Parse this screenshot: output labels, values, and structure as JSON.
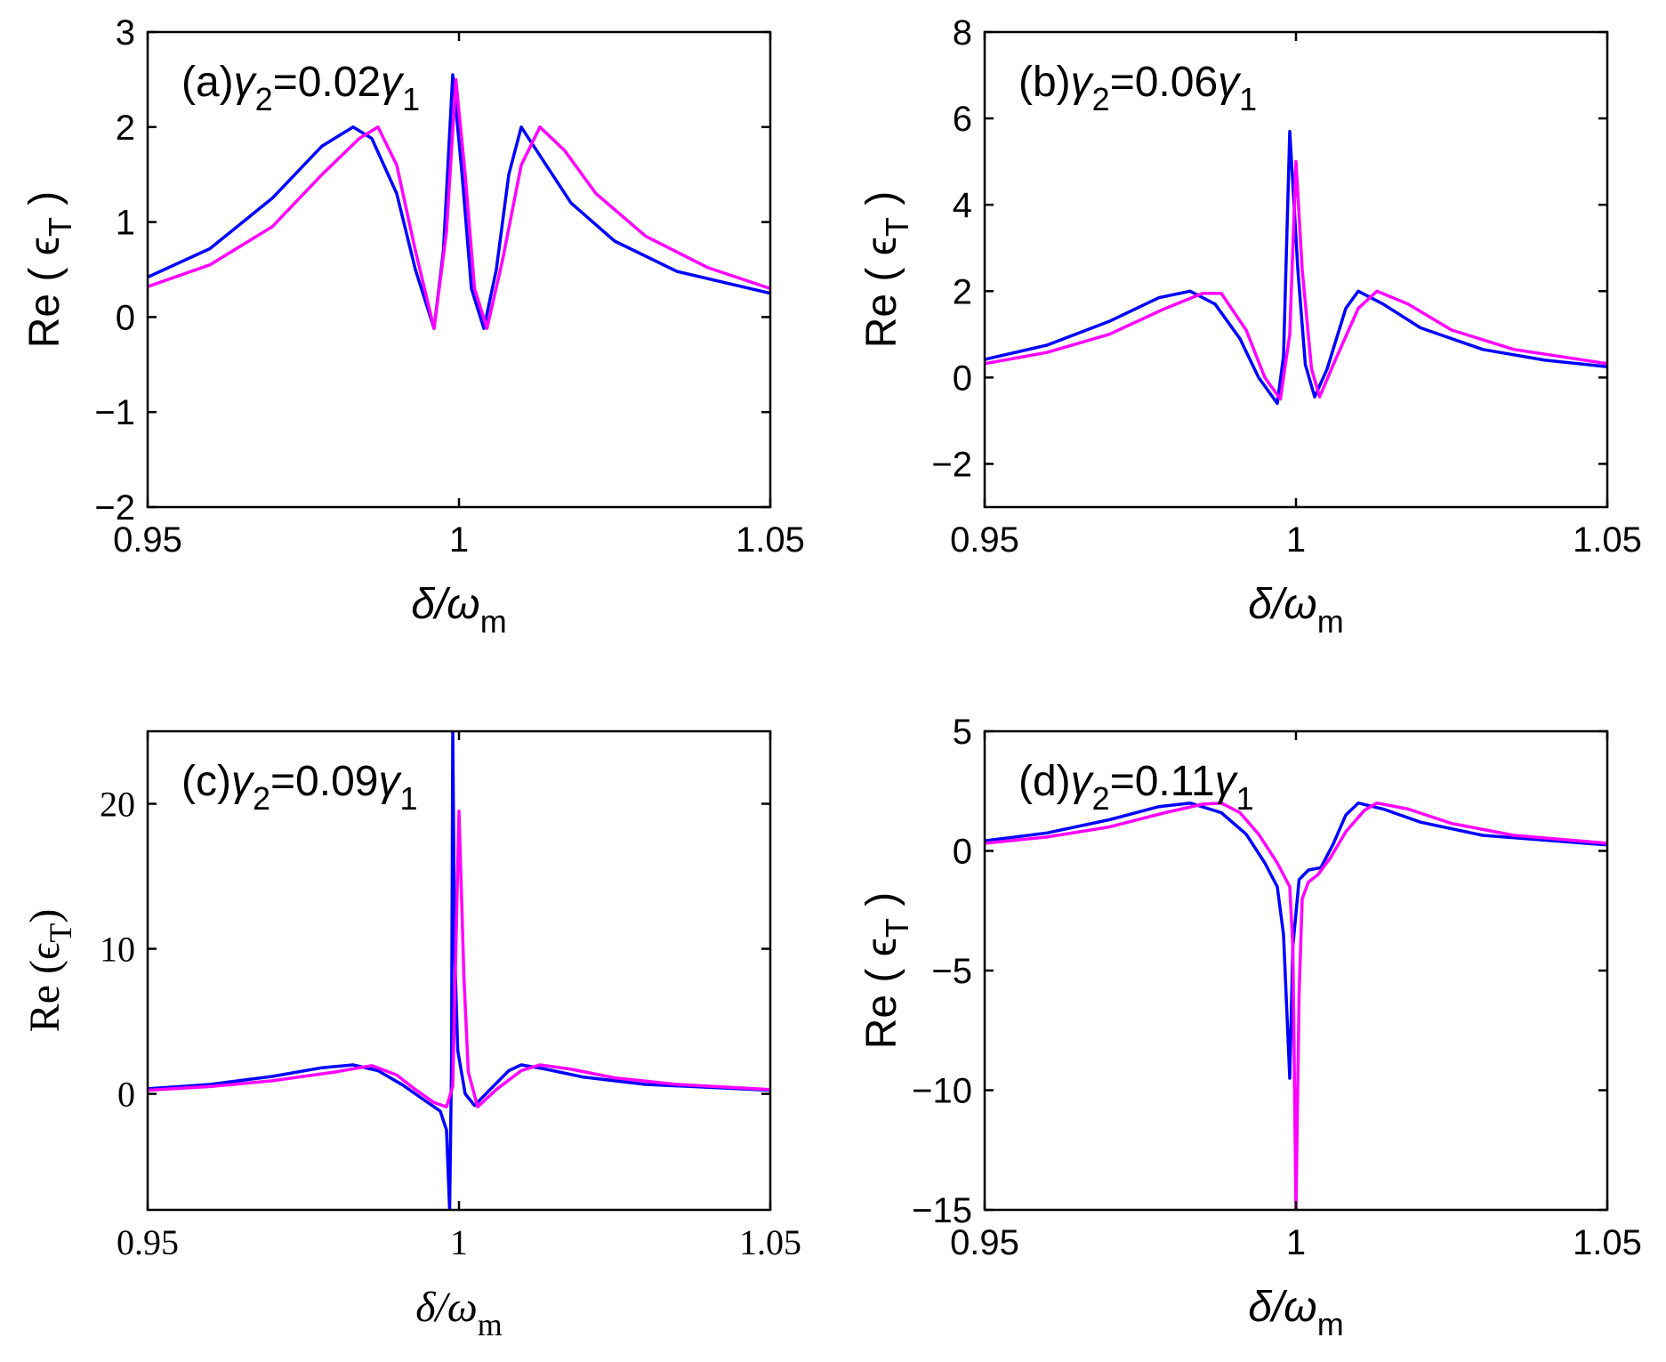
{
  "chart_data": [
    {
      "type": "line",
      "panel": "(a)",
      "label_parts": {
        "prefix": "(a)",
        "var": "γ",
        "sub": "2",
        "mid": "=0.02",
        "var2": "γ",
        "sub2": "1"
      },
      "xlabel": {
        "main": "δ/ω",
        "sub": "m"
      },
      "ylabel": {
        "main": "Re ( ϵ",
        "sub": "T",
        "tail": " )"
      },
      "xlim": [
        0.95,
        1.05
      ],
      "ylim": [
        -2,
        3
      ],
      "xticks": [
        0.95,
        1,
        1.05
      ],
      "xtick_labels": [
        "0.95",
        "1",
        "1.05"
      ],
      "yticks": [
        -2,
        -1,
        0,
        1,
        2,
        3
      ],
      "ytick_labels": [
        "−2",
        "−1",
        "0",
        "1",
        "2",
        "3"
      ],
      "serif": false,
      "series": [
        {
          "name": "blue",
          "color": "#0000ff",
          "points": [
            [
              0.95,
              0.42
            ],
            [
              0.96,
              0.72
            ],
            [
              0.97,
              1.25
            ],
            [
              0.978,
              1.8
            ],
            [
              0.983,
              2.0
            ],
            [
              0.986,
              1.88
            ],
            [
              0.99,
              1.3
            ],
            [
              0.993,
              0.5
            ],
            [
              0.996,
              -0.12
            ],
            [
              0.9975,
              0.7
            ],
            [
              0.999,
              2.55
            ],
            [
              1.0005,
              1.5
            ],
            [
              1.002,
              0.3
            ],
            [
              1.004,
              -0.12
            ],
            [
              1.006,
              0.5
            ],
            [
              1.008,
              1.5
            ],
            [
              1.01,
              2.0
            ],
            [
              1.013,
              1.7
            ],
            [
              1.018,
              1.2
            ],
            [
              1.025,
              0.8
            ],
            [
              1.035,
              0.48
            ],
            [
              1.05,
              0.25
            ]
          ]
        },
        {
          "name": "magenta",
          "color": "#ff00ff",
          "points": [
            [
              0.95,
              0.32
            ],
            [
              0.96,
              0.55
            ],
            [
              0.97,
              0.95
            ],
            [
              0.978,
              1.5
            ],
            [
              0.984,
              1.88
            ],
            [
              0.987,
              2.0
            ],
            [
              0.99,
              1.6
            ],
            [
              0.993,
              0.7
            ],
            [
              0.996,
              -0.12
            ],
            [
              0.998,
              0.9
            ],
            [
              0.9995,
              2.5
            ],
            [
              1.001,
              1.5
            ],
            [
              1.0025,
              0.3
            ],
            [
              1.0045,
              -0.12
            ],
            [
              1.007,
              0.6
            ],
            [
              1.01,
              1.6
            ],
            [
              1.013,
              2.0
            ],
            [
              1.017,
              1.75
            ],
            [
              1.022,
              1.3
            ],
            [
              1.03,
              0.85
            ],
            [
              1.04,
              0.52
            ],
            [
              1.05,
              0.3
            ]
          ]
        }
      ]
    },
    {
      "type": "line",
      "panel": "(b)",
      "label_parts": {
        "prefix": "(b)",
        "var": "γ",
        "sub": "2",
        "mid": "=0.06",
        "var2": "γ",
        "sub2": "1"
      },
      "xlabel": {
        "main": "δ/ω",
        "sub": "m"
      },
      "ylabel": {
        "main": "Re ( ϵ",
        "sub": "T",
        "tail": " )"
      },
      "xlim": [
        0.95,
        1.05
      ],
      "ylim": [
        -3,
        8
      ],
      "xticks": [
        0.95,
        1,
        1.05
      ],
      "xtick_labels": [
        "0.95",
        "1",
        "1.05"
      ],
      "yticks": [
        -2,
        0,
        2,
        4,
        6,
        8
      ],
      "ytick_labels": [
        "−2",
        "0",
        "2",
        "4",
        "6",
        "8"
      ],
      "serif": false,
      "series": [
        {
          "name": "blue",
          "color": "#0000ff",
          "points": [
            [
              0.95,
              0.42
            ],
            [
              0.96,
              0.75
            ],
            [
              0.97,
              1.3
            ],
            [
              0.978,
              1.85
            ],
            [
              0.983,
              2.0
            ],
            [
              0.987,
              1.7
            ],
            [
              0.991,
              0.9
            ],
            [
              0.994,
              0.0
            ],
            [
              0.997,
              -0.6
            ],
            [
              0.998,
              0.5
            ],
            [
              0.999,
              5.7
            ],
            [
              1.0003,
              2.5
            ],
            [
              1.0015,
              0.3
            ],
            [
              1.003,
              -0.45
            ],
            [
              1.005,
              0.2
            ],
            [
              1.008,
              1.6
            ],
            [
              1.01,
              2.0
            ],
            [
              1.014,
              1.7
            ],
            [
              1.02,
              1.15
            ],
            [
              1.03,
              0.65
            ],
            [
              1.04,
              0.4
            ],
            [
              1.05,
              0.25
            ]
          ]
        },
        {
          "name": "magenta",
          "color": "#ff00ff",
          "points": [
            [
              0.95,
              0.32
            ],
            [
              0.96,
              0.58
            ],
            [
              0.97,
              1.0
            ],
            [
              0.979,
              1.6
            ],
            [
              0.985,
              1.95
            ],
            [
              0.988,
              1.95
            ],
            [
              0.992,
              1.1
            ],
            [
              0.995,
              0.0
            ],
            [
              0.9975,
              -0.5
            ],
            [
              0.999,
              1.0
            ],
            [
              1.0,
              5.0
            ],
            [
              1.001,
              2.5
            ],
            [
              1.0025,
              0.2
            ],
            [
              1.0038,
              -0.45
            ],
            [
              1.006,
              0.3
            ],
            [
              1.01,
              1.6
            ],
            [
              1.013,
              2.0
            ],
            [
              1.018,
              1.7
            ],
            [
              1.025,
              1.1
            ],
            [
              1.035,
              0.65
            ],
            [
              1.05,
              0.32
            ]
          ]
        }
      ]
    },
    {
      "type": "line",
      "panel": "(c)",
      "label_parts": {
        "prefix": "(c)",
        "var": "γ",
        "sub": "2",
        "mid": "=0.09",
        "var2": "γ",
        "sub2": "1"
      },
      "xlabel": {
        "main": "δ/ω",
        "sub": "m"
      },
      "ylabel": {
        "main": "Re (ϵ",
        "sub": "T",
        "tail": ")"
      },
      "xlim": [
        0.95,
        1.05
      ],
      "ylim": [
        -8,
        25
      ],
      "xticks": [
        0.95,
        1,
        1.05
      ],
      "xtick_labels": [
        "0.95",
        "1",
        "1.05"
      ],
      "yticks": [
        0,
        10,
        20
      ],
      "ytick_labels": [
        "0",
        "10",
        "20"
      ],
      "serif": true,
      "series": [
        {
          "name": "blue",
          "color": "#0000ff",
          "points": [
            [
              0.95,
              0.35
            ],
            [
              0.96,
              0.65
            ],
            [
              0.97,
              1.2
            ],
            [
              0.978,
              1.8
            ],
            [
              0.983,
              2.0
            ],
            [
              0.987,
              1.6
            ],
            [
              0.991,
              0.6
            ],
            [
              0.994,
              -0.3
            ],
            [
              0.997,
              -1.2
            ],
            [
              0.998,
              -2.5
            ],
            [
              0.9985,
              -8
            ],
            [
              0.9988,
              2
            ],
            [
              0.999,
              25
            ],
            [
              0.9993,
              10
            ],
            [
              0.9998,
              3
            ],
            [
              1.001,
              0
            ],
            [
              1.0025,
              -0.8
            ],
            [
              1.005,
              0.3
            ],
            [
              1.008,
              1.6
            ],
            [
              1.01,
              2.0
            ],
            [
              1.014,
              1.7
            ],
            [
              1.02,
              1.15
            ],
            [
              1.03,
              0.65
            ],
            [
              1.05,
              0.25
            ]
          ]
        },
        {
          "name": "magenta",
          "color": "#ff00ff",
          "points": [
            [
              0.95,
              0.25
            ],
            [
              0.96,
              0.5
            ],
            [
              0.97,
              0.9
            ],
            [
              0.98,
              1.5
            ],
            [
              0.986,
              1.95
            ],
            [
              0.99,
              1.3
            ],
            [
              0.993,
              0.3
            ],
            [
              0.996,
              -0.6
            ],
            [
              0.998,
              -0.9
            ],
            [
              0.999,
              0.5
            ],
            [
              1.0,
              19.5
            ],
            [
              1.0008,
              8
            ],
            [
              1.0015,
              1.5
            ],
            [
              1.003,
              -0.9
            ],
            [
              1.006,
              0.3
            ],
            [
              1.01,
              1.6
            ],
            [
              1.013,
              2.0
            ],
            [
              1.018,
              1.7
            ],
            [
              1.025,
              1.1
            ],
            [
              1.035,
              0.65
            ],
            [
              1.05,
              0.3
            ]
          ]
        }
      ]
    },
    {
      "type": "line",
      "panel": "(d)",
      "label_parts": {
        "prefix": "(d)",
        "var": "γ",
        "sub": "2",
        "mid": "=0.11",
        "var2": "γ",
        "sub2": "1"
      },
      "xlabel": {
        "main": "δ/ω",
        "sub": "m"
      },
      "ylabel": {
        "main": "Re ( ϵ",
        "sub": "T",
        "tail": " )"
      },
      "xlim": [
        0.95,
        1.05
      ],
      "ylim": [
        -15,
        5
      ],
      "xticks": [
        0.95,
        1,
        1.05
      ],
      "xtick_labels": [
        "0.95",
        "1",
        "1.05"
      ],
      "yticks": [
        -15,
        -10,
        -5,
        0,
        5
      ],
      "ytick_labels": [
        "−15",
        "−10",
        "−5",
        "0",
        "5"
      ],
      "serif": false,
      "series": [
        {
          "name": "blue",
          "color": "#0000ff",
          "points": [
            [
              0.95,
              0.42
            ],
            [
              0.96,
              0.75
            ],
            [
              0.97,
              1.3
            ],
            [
              0.978,
              1.85
            ],
            [
              0.983,
              2.0
            ],
            [
              0.988,
              1.6
            ],
            [
              0.992,
              0.7
            ],
            [
              0.995,
              -0.5
            ],
            [
              0.997,
              -1.5
            ],
            [
              0.998,
              -3.5
            ],
            [
              0.999,
              -9.5
            ],
            [
              0.9995,
              -4
            ],
            [
              1.0005,
              -1.2
            ],
            [
              1.002,
              -0.8
            ],
            [
              1.004,
              -0.7
            ],
            [
              1.006,
              0.3
            ],
            [
              1.008,
              1.5
            ],
            [
              1.01,
              2.0
            ],
            [
              1.014,
              1.75
            ],
            [
              1.02,
              1.2
            ],
            [
              1.03,
              0.65
            ],
            [
              1.05,
              0.25
            ]
          ]
        },
        {
          "name": "magenta",
          "color": "#ff00ff",
          "points": [
            [
              0.95,
              0.32
            ],
            [
              0.96,
              0.58
            ],
            [
              0.97,
              1.0
            ],
            [
              0.979,
              1.6
            ],
            [
              0.985,
              1.95
            ],
            [
              0.988,
              2.0
            ],
            [
              0.991,
              1.6
            ],
            [
              0.994,
              0.7
            ],
            [
              0.997,
              -0.5
            ],
            [
              0.999,
              -1.5
            ],
            [
              0.9995,
              -4
            ],
            [
              1.0,
              -15
            ],
            [
              1.0005,
              -6
            ],
            [
              1.001,
              -2
            ],
            [
              1.002,
              -1.3
            ],
            [
              1.0035,
              -1.0
            ],
            [
              1.0055,
              -0.3
            ],
            [
              1.008,
              0.8
            ],
            [
              1.011,
              1.7
            ],
            [
              1.013,
              2.0
            ],
            [
              1.018,
              1.75
            ],
            [
              1.025,
              1.15
            ],
            [
              1.035,
              0.65
            ],
            [
              1.05,
              0.32
            ]
          ]
        }
      ]
    }
  ]
}
